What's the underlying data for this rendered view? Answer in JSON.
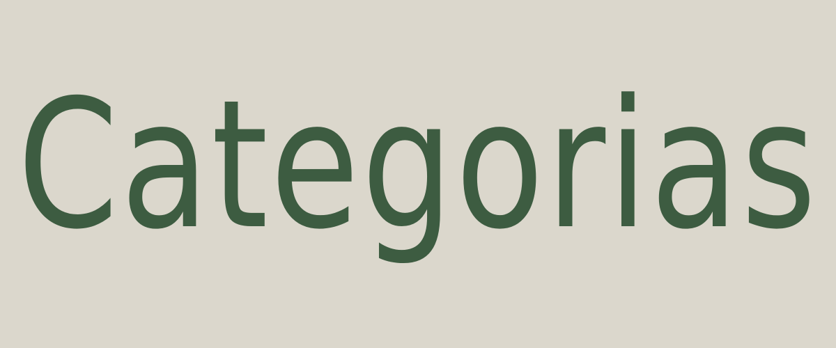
{
  "banner": {
    "title": "Categorias",
    "background_color": "#dbd7cc",
    "text_color": "#3d5c41"
  }
}
